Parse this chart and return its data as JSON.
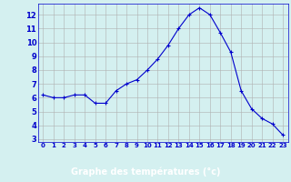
{
  "hours": [
    0,
    1,
    2,
    3,
    4,
    5,
    6,
    7,
    8,
    9,
    10,
    11,
    12,
    13,
    14,
    15,
    16,
    17,
    18,
    19,
    20,
    21,
    22,
    23
  ],
  "temps": [
    6.2,
    6.0,
    6.0,
    6.2,
    6.2,
    5.6,
    5.6,
    6.5,
    7.0,
    7.3,
    8.0,
    8.8,
    9.8,
    11.0,
    12.0,
    12.5,
    12.0,
    10.7,
    9.3,
    6.5,
    5.2,
    4.5,
    4.1,
    3.3
  ],
  "line_color": "#0000cc",
  "marker": "+",
  "marker_size": 3,
  "bg_color": "#d4f0f0",
  "grid_color": "#b0b0b0",
  "xlabel": "Graphe des températures (°c)",
  "xlabel_color": "#ffffff",
  "xlabel_bg": "#0000aa",
  "ylabel_ticks": [
    3,
    4,
    5,
    6,
    7,
    8,
    9,
    10,
    11,
    12
  ],
  "xlim": [
    -0.5,
    23.5
  ],
  "ylim": [
    2.8,
    12.8
  ],
  "xtick_labels": [
    "0",
    "1",
    "2",
    "3",
    "4",
    "5",
    "6",
    "7",
    "8",
    "9",
    "10",
    "11",
    "12",
    "13",
    "14",
    "15",
    "16",
    "17",
    "18",
    "19",
    "20",
    "21",
    "22",
    "23"
  ]
}
